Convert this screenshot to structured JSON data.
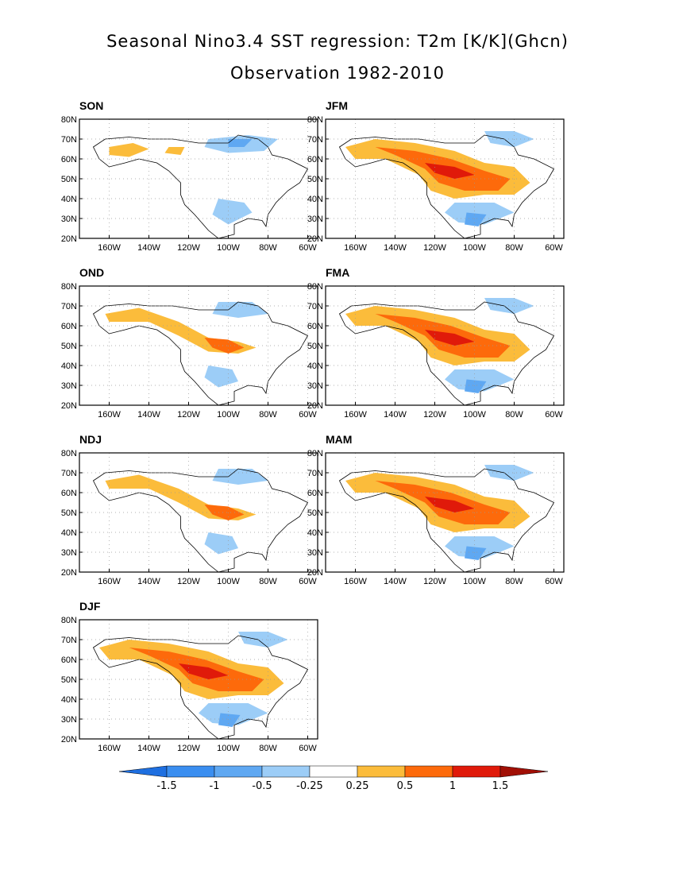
{
  "header": {
    "title": "Seasonal Nino3.4 SST regression: T2m [K/K](Ghcn)",
    "subtitle": "Observation 1982-2010"
  },
  "axes": {
    "lat_ticks": [
      "80N",
      "70N",
      "60N",
      "50N",
      "40N",
      "30N",
      "20N"
    ],
    "lon_ticks": [
      "160W",
      "140W",
      "120W",
      "100W",
      "80W",
      "60W"
    ],
    "lat_range": [
      20,
      80
    ],
    "lon_range": [
      -175,
      -55
    ],
    "grid": "dotted"
  },
  "panels": [
    {
      "season": "SON",
      "pattern": "weak"
    },
    {
      "season": "JFM",
      "pattern": "strong"
    },
    {
      "season": "OND",
      "pattern": "moderate"
    },
    {
      "season": "FMA",
      "pattern": "strong"
    },
    {
      "season": "NDJ",
      "pattern": "moderate"
    },
    {
      "season": "MAM",
      "pattern": "strong"
    },
    {
      "season": "DJF",
      "pattern": "strong"
    }
  ],
  "colorbar": {
    "levels": [
      "-1.5",
      "-1",
      "-0.5",
      "-0.25",
      "0.25",
      "0.5",
      "1",
      "1.5"
    ],
    "colors": [
      "#1e6fe0",
      "#3a8ef0",
      "#5fa8f2",
      "#9ccdf7",
      "#ffffff",
      "#fbbc3b",
      "#fd6a0b",
      "#e01a0a",
      "#a10f05"
    ]
  },
  "chart_data": {
    "type": "heatmap",
    "title": "Seasonal Nino3.4 SST regression: T2m [K/K](Ghcn)",
    "subtitle": "Observation 1982-2010",
    "units": "K/K",
    "panels": [
      "SON",
      "JFM",
      "OND",
      "FMA",
      "NDJ",
      "MAM",
      "DJF"
    ],
    "contour_levels": [
      -1.5,
      -1,
      -0.5,
      -0.25,
      0.25,
      0.5,
      1,
      1.5
    ],
    "lat_range": [
      20,
      80
    ],
    "lon_range": [
      -175,
      -55
    ]
  }
}
